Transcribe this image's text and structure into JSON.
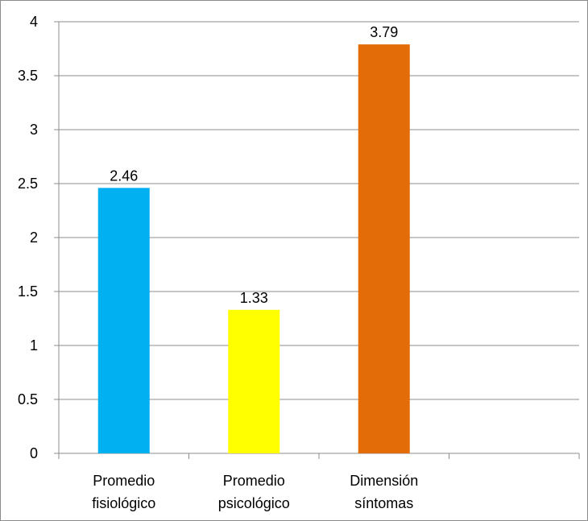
{
  "chart_data": {
    "type": "bar",
    "categories": [
      [
        "Promedio",
        "fisiológico"
      ],
      [
        "Promedio",
        "psicológico"
      ],
      [
        "Dimensión",
        "síntomas"
      ],
      []
    ],
    "values": [
      2.46,
      1.33,
      3.79,
      null
    ],
    "data_labels": [
      "2.46",
      "1.33",
      "3.79",
      ""
    ],
    "colors": [
      "#00b0f0",
      "#ffff00",
      "#e36c09",
      ""
    ],
    "ylim": [
      0,
      4
    ],
    "yticks": [
      "0",
      "0.5",
      "1",
      "1.5",
      "2",
      "2.5",
      "3",
      "3.5",
      "4"
    ],
    "grid": true,
    "legend": "none",
    "title": "",
    "xlabel": "",
    "ylabel": ""
  }
}
